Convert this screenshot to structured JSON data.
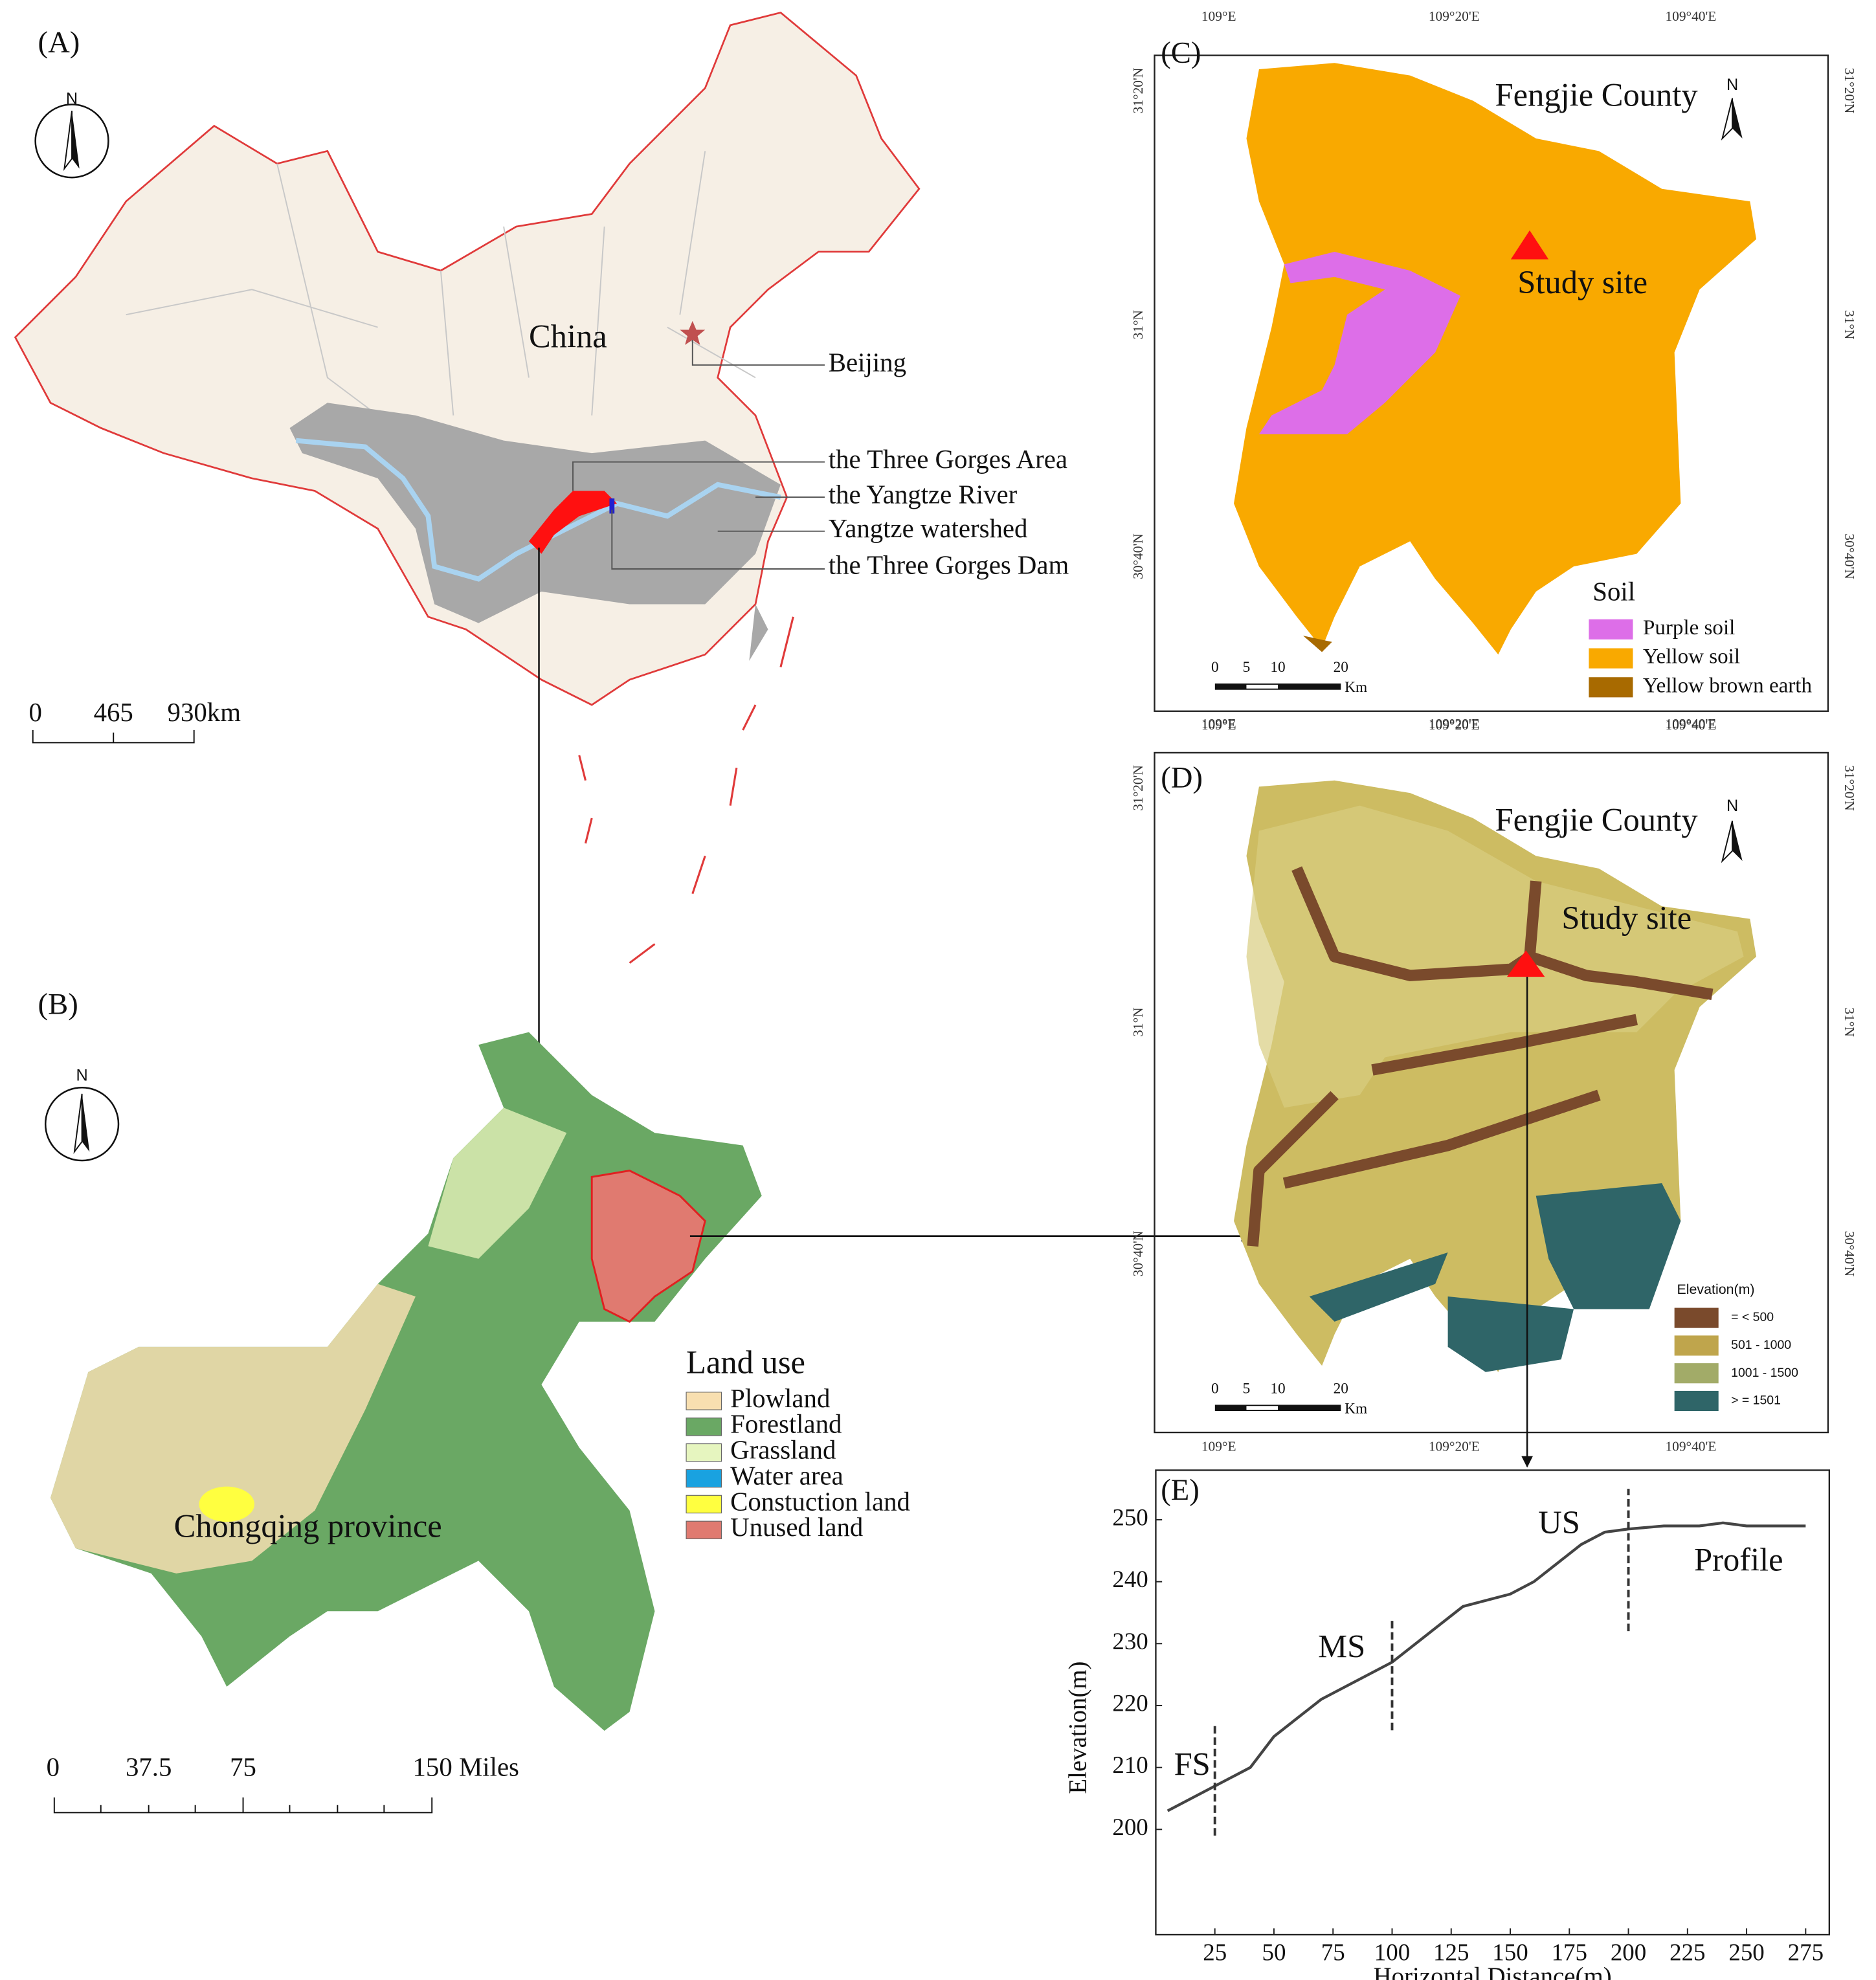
{
  "panels": {
    "a": {
      "label": "(A)",
      "north": "N",
      "country": "China",
      "capital": "Beijing",
      "callouts": [
        "the Three Gorges Area",
        "the Yangtze River",
        "Yangtze watershed",
        "the Three Gorges Dam"
      ],
      "scale": [
        "0",
        "465",
        "930km"
      ]
    },
    "b": {
      "label": "(B)",
      "north": "N",
      "region": "Chongqing province",
      "legend_title": "Land use",
      "legend": [
        {
          "name": "Plowland",
          "color": "#f8dfb0"
        },
        {
          "name": "Forestland",
          "color": "#6aa864"
        },
        {
          "name": "Grassland",
          "color": "#e6f5bf"
        },
        {
          "name": "Water area",
          "color": "#19a2e0"
        },
        {
          "name": "Constuction land",
          "color": "#ffff40"
        },
        {
          "name": "Unused land",
          "color": "#e07a70"
        }
      ],
      "scale": [
        "0",
        "37.5",
        "75",
        "150 Miles"
      ]
    },
    "c": {
      "label": "(C)",
      "title": "Fengjie County",
      "north": "N",
      "site": "Study site",
      "legend_title": "Soil",
      "legend": [
        {
          "name": "Purple soil",
          "color": "#dd6ee8"
        },
        {
          "name": "Yellow soil",
          "color": "#f9a900"
        },
        {
          "name": "Yellow brown earth",
          "color": "#a86a00"
        }
      ],
      "scale": [
        "0",
        "5",
        "10",
        "20",
        "Km"
      ],
      "lon_labels": [
        "109°E",
        "109°20'E",
        "109°40'E"
      ],
      "lat_labels": [
        "31°20'N",
        "31°N",
        "30°40'N"
      ]
    },
    "d": {
      "label": "(D)",
      "title": "Fengjie County",
      "north": "N",
      "site": "Study site",
      "legend_title": "Elevation(m)",
      "legend": [
        {
          "name": "= < 500",
          "color": "#7a4a2c"
        },
        {
          "name": "501 - 1000",
          "color": "#bfa54c"
        },
        {
          "name": "1001 - 1500",
          "color": "#a2ab68"
        },
        {
          "name": "> = 1501",
          "color": "#2f6568"
        }
      ],
      "scale": [
        "0",
        "5",
        "10",
        "20",
        "Km"
      ],
      "lon_labels": [
        "109°E",
        "109°20'E",
        "109°40'E"
      ],
      "lat_labels": [
        "31°20'N",
        "31°N",
        "30°40'N"
      ]
    },
    "e": {
      "label": "(E)",
      "chart_data": {
        "type": "line",
        "xlabel": "Horizontal Distance(m)",
        "ylabel": "Elevation(m)",
        "annotation": "Profile",
        "x": [
          5,
          15,
          25,
          40,
          50,
          60,
          70,
          80,
          90,
          100,
          110,
          120,
          130,
          140,
          150,
          160,
          170,
          180,
          190,
          200,
          215,
          230,
          240,
          250,
          275
        ],
        "values": [
          203,
          205,
          207,
          210,
          215,
          218,
          221,
          223,
          225,
          227,
          230,
          233,
          236,
          237,
          238,
          240,
          243,
          246,
          248,
          248.5,
          249,
          249,
          249.5,
          249,
          249
        ],
        "color": "#444",
        "markers": [
          {
            "label": "FS",
            "x": 25
          },
          {
            "label": "MS",
            "x": 100
          },
          {
            "label": "US",
            "x": 200
          }
        ],
        "xlim": [
          0,
          285
        ],
        "ylim": [
          183,
          258
        ],
        "xticks": [
          25,
          50,
          75,
          100,
          125,
          150,
          175,
          200,
          225,
          250,
          275
        ],
        "yticks": [
          200,
          210,
          220,
          230,
          240,
          250
        ]
      }
    }
  }
}
